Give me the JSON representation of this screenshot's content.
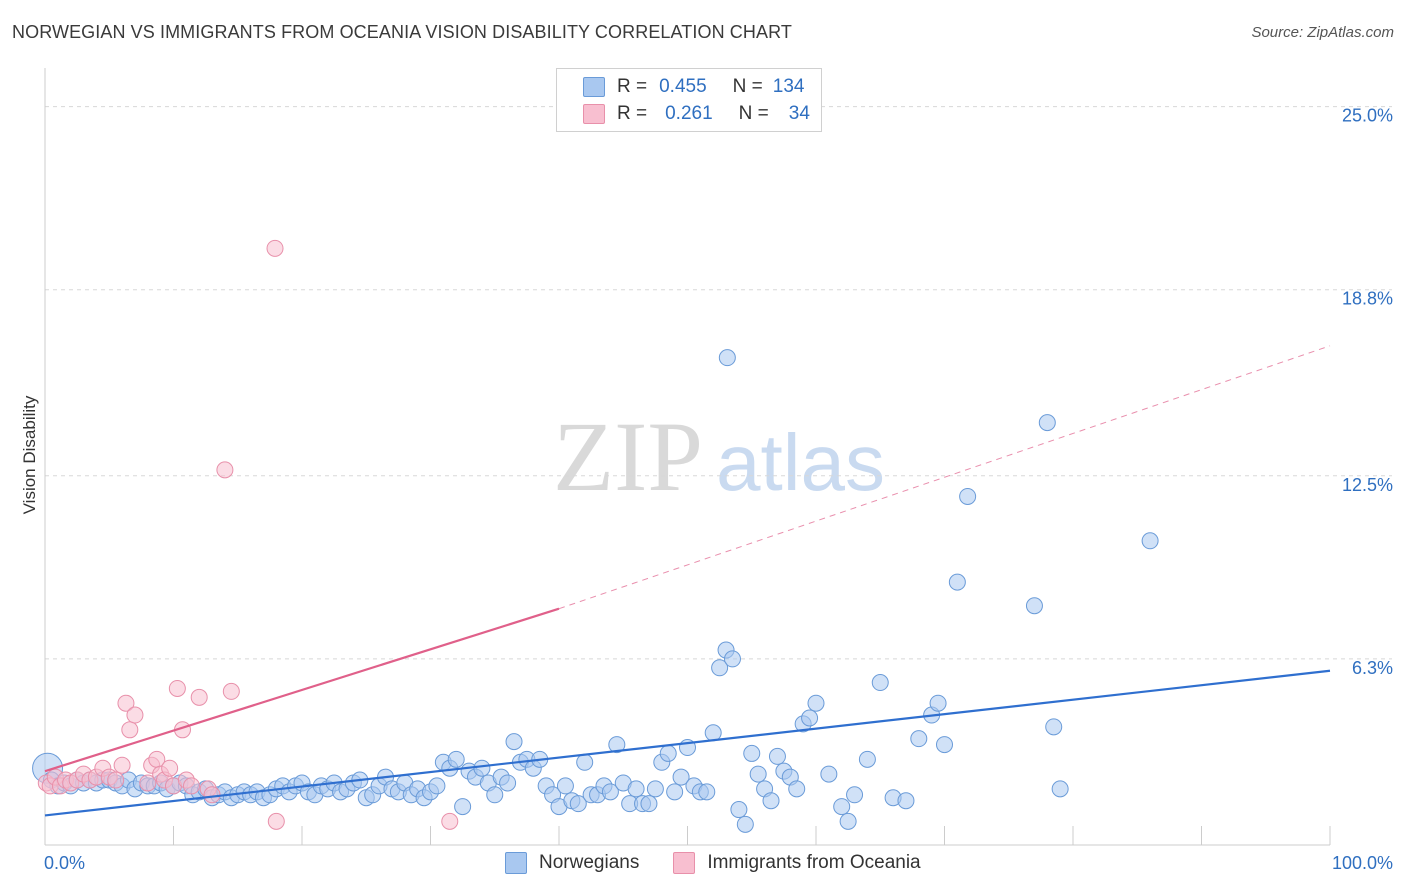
{
  "title": "NORWEGIAN VS IMMIGRANTS FROM OCEANIA VISION DISABILITY CORRELATION CHART",
  "source": "Source: ZipAtlas.com",
  "watermark": {
    "zip": "ZIP",
    "atlas": "atlas"
  },
  "legend": {
    "rows": [
      {
        "r_label": "R =",
        "r_value": "0.455",
        "n_label": "N =",
        "n_value": "134",
        "color": "#a9c8f0",
        "border": "#6a9bd8"
      },
      {
        "r_label": "R =",
        "r_value": "0.261",
        "n_label": "N =",
        "n_value": "34",
        "color": "#f8bfd0",
        "border": "#e890aa"
      }
    ]
  },
  "bottom_legend": [
    {
      "label": "Norwegians",
      "color": "#a9c8f0",
      "border": "#6a9bd8"
    },
    {
      "label": "Immigrants from Oceania",
      "color": "#f8bfd0",
      "border": "#e890aa"
    }
  ],
  "chart_data": {
    "type": "scatter",
    "title": "NORWEGIAN VS IMMIGRANTS FROM OCEANIA VISION DISABILITY CORRELATION CHART",
    "xlabel": "",
    "ylabel": "Vision Disability",
    "xlim": [
      0,
      100
    ],
    "ylim": [
      0,
      25.9
    ],
    "x_tick_labels": [
      "0.0%",
      "100.0%"
    ],
    "y_ticks": [
      6.3,
      12.5,
      18.8,
      25.0
    ],
    "y_tick_labels": [
      "6.3%",
      "12.5%",
      "18.8%",
      "25.0%"
    ],
    "grid": true,
    "series": [
      {
        "name": "Norwegians",
        "color": "#6a9bd8",
        "fill": "#a9c8f0",
        "trend": {
          "x": [
            0,
            100
          ],
          "y": [
            1.0,
            5.9
          ],
          "style": "solid",
          "color": "#2f6fcf"
        },
        "points": [
          [
            0.2,
            2.6
          ],
          [
            0.5,
            2.2
          ],
          [
            1,
            2.0
          ],
          [
            1.5,
            2.1
          ],
          [
            2,
            2.0
          ],
          [
            2.5,
            2.2
          ],
          [
            3,
            2.1
          ],
          [
            3.5,
            2.2
          ],
          [
            4,
            2.1
          ],
          [
            4.5,
            2.2
          ],
          [
            5,
            2.2
          ],
          [
            5.5,
            2.1
          ],
          [
            6,
            2.0
          ],
          [
            6.5,
            2.2
          ],
          [
            7,
            1.9
          ],
          [
            7.5,
            2.1
          ],
          [
            8,
            2.0
          ],
          [
            8.5,
            2.0
          ],
          [
            9,
            2.1
          ],
          [
            9.5,
            1.9
          ],
          [
            10,
            2.0
          ],
          [
            10.5,
            2.1
          ],
          [
            11,
            2.0
          ],
          [
            11.5,
            1.7
          ],
          [
            12,
            1.8
          ],
          [
            12.5,
            1.9
          ],
          [
            13,
            1.6
          ],
          [
            13.5,
            1.7
          ],
          [
            14,
            1.8
          ],
          [
            14.5,
            1.6
          ],
          [
            15,
            1.7
          ],
          [
            15.5,
            1.8
          ],
          [
            16,
            1.7
          ],
          [
            16.5,
            1.8
          ],
          [
            17,
            1.6
          ],
          [
            17.5,
            1.7
          ],
          [
            18,
            1.9
          ],
          [
            18.5,
            2.0
          ],
          [
            19,
            1.8
          ],
          [
            19.5,
            2.0
          ],
          [
            20,
            2.1
          ],
          [
            20.5,
            1.8
          ],
          [
            21,
            1.7
          ],
          [
            21.5,
            2.0
          ],
          [
            22,
            1.9
          ],
          [
            22.5,
            2.1
          ],
          [
            23,
            1.8
          ],
          [
            23.5,
            1.9
          ],
          [
            24,
            2.1
          ],
          [
            24.5,
            2.2
          ],
          [
            25,
            1.6
          ],
          [
            25.5,
            1.7
          ],
          [
            26,
            2.0
          ],
          [
            26.5,
            2.3
          ],
          [
            27,
            1.9
          ],
          [
            27.5,
            1.8
          ],
          [
            28,
            2.1
          ],
          [
            28.5,
            1.7
          ],
          [
            29,
            1.9
          ],
          [
            29.5,
            1.6
          ],
          [
            30,
            1.8
          ],
          [
            30.5,
            2.0
          ],
          [
            31,
            2.8
          ],
          [
            31.5,
            2.6
          ],
          [
            32,
            2.9
          ],
          [
            32.5,
            1.3
          ],
          [
            33,
            2.5
          ],
          [
            33.5,
            2.3
          ],
          [
            34,
            2.6
          ],
          [
            34.5,
            2.1
          ],
          [
            35,
            1.7
          ],
          [
            35.5,
            2.3
          ],
          [
            36,
            2.1
          ],
          [
            36.5,
            3.5
          ],
          [
            37,
            2.8
          ],
          [
            37.5,
            2.9
          ],
          [
            38,
            2.6
          ],
          [
            38.5,
            2.9
          ],
          [
            39,
            2.0
          ],
          [
            39.5,
            1.7
          ],
          [
            40,
            1.3
          ],
          [
            40.5,
            2.0
          ],
          [
            41,
            1.5
          ],
          [
            41.5,
            1.4
          ],
          [
            42,
            2.8
          ],
          [
            42.5,
            1.7
          ],
          [
            43,
            1.7
          ],
          [
            43.5,
            2.0
          ],
          [
            44,
            1.8
          ],
          [
            44.5,
            3.4
          ],
          [
            45,
            2.1
          ],
          [
            45.5,
            1.4
          ],
          [
            46,
            1.9
          ],
          [
            46.5,
            1.4
          ],
          [
            47,
            1.4
          ],
          [
            47.5,
            1.9
          ],
          [
            48,
            2.8
          ],
          [
            48.5,
            3.1
          ],
          [
            49,
            1.8
          ],
          [
            49.5,
            2.3
          ],
          [
            50,
            3.3
          ],
          [
            50.5,
            2.0
          ],
          [
            51,
            1.8
          ],
          [
            51.5,
            1.8
          ],
          [
            52,
            3.8
          ],
          [
            52.5,
            6.0
          ],
          [
            53,
            6.6
          ],
          [
            53.5,
            6.3
          ],
          [
            54,
            1.2
          ],
          [
            54.5,
            0.7
          ],
          [
            55,
            3.1
          ],
          [
            55.5,
            2.4
          ],
          [
            56,
            1.9
          ],
          [
            56.5,
            1.5
          ],
          [
            57,
            3.0
          ],
          [
            57.5,
            2.5
          ],
          [
            58,
            2.3
          ],
          [
            58.5,
            1.9
          ],
          [
            59,
            4.1
          ],
          [
            59.5,
            4.3
          ],
          [
            60,
            4.8
          ],
          [
            61,
            2.4
          ],
          [
            62,
            1.3
          ],
          [
            62.5,
            0.8
          ],
          [
            63,
            1.7
          ],
          [
            64,
            2.9
          ],
          [
            65,
            5.5
          ],
          [
            66,
            1.6
          ],
          [
            67,
            1.5
          ],
          [
            68,
            3.6
          ],
          [
            69,
            4.4
          ],
          [
            69.5,
            4.8
          ],
          [
            70,
            3.4
          ],
          [
            71,
            8.9
          ],
          [
            71.8,
            11.8
          ],
          [
            77,
            8.1
          ],
          [
            78,
            14.3
          ],
          [
            78.5,
            4.0
          ],
          [
            79,
            1.9
          ],
          [
            86,
            10.3
          ]
        ],
        "outliers": [
          [
            53.1,
            16.5
          ]
        ]
      },
      {
        "name": "Immigrants from Oceania",
        "color": "#e890aa",
        "fill": "#f8bfd0",
        "trend": {
          "x": [
            0,
            40
          ],
          "y": [
            2.5,
            8.0
          ],
          "style": "solid",
          "color": "#e0608a",
          "extension": {
            "x": [
              40,
              100
            ],
            "y": [
              8.0,
              16.9
            ],
            "style": "dashed"
          }
        },
        "points": [
          [
            0.1,
            2.1
          ],
          [
            0.4,
            2.0
          ],
          [
            0.8,
            2.3
          ],
          [
            1.2,
            2.0
          ],
          [
            1.6,
            2.2
          ],
          [
            2,
            2.1
          ],
          [
            2.5,
            2.2
          ],
          [
            3,
            2.4
          ],
          [
            3.5,
            2.2
          ],
          [
            4,
            2.3
          ],
          [
            4.5,
            2.6
          ],
          [
            5,
            2.3
          ],
          [
            5.5,
            2.2
          ],
          [
            6,
            2.7
          ],
          [
            6.3,
            4.8
          ],
          [
            6.6,
            3.9
          ],
          [
            7,
            4.4
          ],
          [
            8,
            2.1
          ],
          [
            8.3,
            2.7
          ],
          [
            8.7,
            2.9
          ],
          [
            9,
            2.4
          ],
          [
            9.3,
            2.2
          ],
          [
            9.7,
            2.6
          ],
          [
            10,
            2.0
          ],
          [
            10.3,
            5.3
          ],
          [
            10.7,
            3.9
          ],
          [
            11,
            2.2
          ],
          [
            11.4,
            2.0
          ],
          [
            12,
            5.0
          ],
          [
            12.7,
            1.9
          ],
          [
            13,
            1.7
          ],
          [
            14,
            12.7
          ],
          [
            14.5,
            5.2
          ],
          [
            18,
            0.8
          ],
          [
            31.5,
            0.8
          ],
          [
            17.9,
            20.2
          ]
        ]
      }
    ]
  }
}
